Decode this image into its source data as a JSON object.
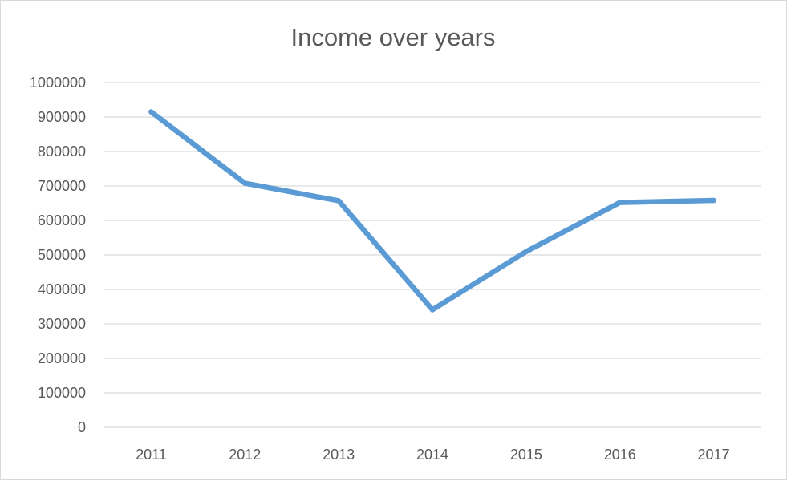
{
  "chart_data": {
    "type": "line",
    "title": "Income over years",
    "xlabel": "",
    "ylabel": "",
    "categories": [
      "2011",
      "2012",
      "2013",
      "2014",
      "2015",
      "2016",
      "2017"
    ],
    "series": [
      {
        "values": [
          915000,
          708000,
          657000,
          341000,
          510000,
          652000,
          658000
        ],
        "color": "#5b9bd5"
      }
    ],
    "ylim": [
      0,
      1000000
    ],
    "yticks": [
      "0",
      "100000",
      "200000",
      "300000",
      "400000",
      "500000",
      "600000",
      "700000",
      "800000",
      "900000",
      "1000000"
    ],
    "grid": true,
    "legend": "none"
  }
}
